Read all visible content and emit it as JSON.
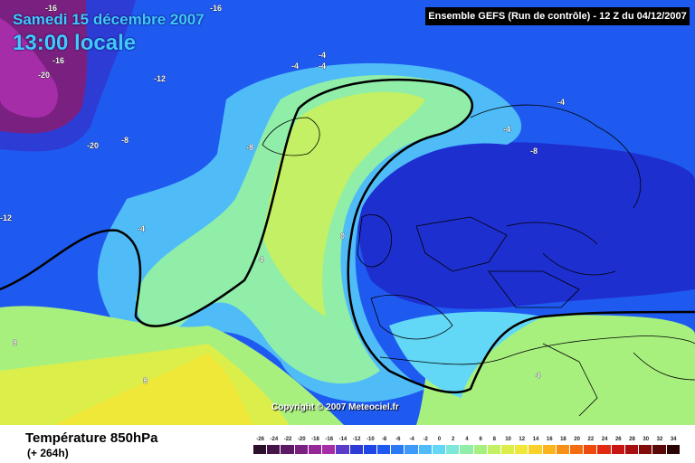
{
  "header": {
    "date": "Samedi 15 décembre 2007",
    "time": "13:00 locale",
    "run_info": "Ensemble GEFS (Run de contrôle)  -  12 Z du 04/12/2007"
  },
  "footer": {
    "parameter": "Température 850hPa",
    "lead_time": "(+ 264h)",
    "copyright": "Copyright © 2007 Meteociel.fr"
  },
  "legend": {
    "labels": [
      "-26",
      "-24",
      "-22",
      "-20",
      "-18",
      "-16",
      "-14",
      "-12",
      "-10",
      "-8",
      "-6",
      "-4",
      "-2",
      "0",
      "2",
      "4",
      "6",
      "8",
      "10",
      "12",
      "14",
      "16",
      "18",
      "20",
      "22",
      "24",
      "26",
      "28",
      "30",
      "32",
      "34"
    ],
    "colors": [
      "#2b0f2b",
      "#451449",
      "#5c1a66",
      "#7a2080",
      "#952799",
      "#a52da8",
      "#5a3cc8",
      "#2e3cd6",
      "#1e46e6",
      "#1f5af0",
      "#2a7af5",
      "#3d9af8",
      "#4fbcf8",
      "#62d8f6",
      "#7ee8d8",
      "#90eea8",
      "#a8f07e",
      "#c3f064",
      "#dcee4a",
      "#f0e838",
      "#f8d22a",
      "#fab41e",
      "#f89016",
      "#f46c10",
      "#ee4a0e",
      "#e22a10",
      "#c81414",
      "#a81010",
      "#820c0c",
      "#5a0808",
      "#2a0404"
    ]
  },
  "contour_labels": [
    {
      "text": "-16"
    },
    {
      "text": "-16"
    },
    {
      "text": "-20"
    },
    {
      "text": "-16"
    },
    {
      "text": "-12"
    },
    {
      "text": "-20"
    },
    {
      "text": "-8"
    },
    {
      "text": "-4"
    },
    {
      "text": "-4"
    },
    {
      "text": "-4"
    },
    {
      "text": "-8"
    },
    {
      "text": "-4"
    },
    {
      "text": "-4"
    },
    {
      "text": "-8"
    },
    {
      "text": "-12"
    },
    {
      "text": "-4"
    },
    {
      "text": "0"
    },
    {
      "text": "4"
    },
    {
      "text": "8"
    },
    {
      "text": "8"
    },
    {
      "text": "4"
    }
  ]
}
